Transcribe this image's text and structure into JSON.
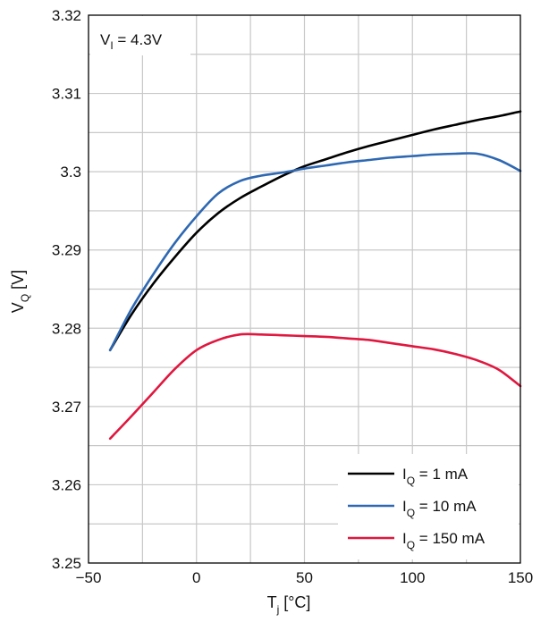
{
  "chart_data": {
    "type": "line",
    "title": "",
    "annotation": {
      "main": "V",
      "sub": "I",
      "rest": " = 4.3V"
    },
    "xlabel": {
      "main": "T",
      "sub": "j",
      "rest": " [°C]"
    },
    "ylabel": {
      "main": "V",
      "sub": "Q",
      "rest": " [V]"
    },
    "xlim": [
      -50,
      150
    ],
    "ylim": [
      3.25,
      3.32
    ],
    "xticks": [
      -50,
      0,
      50,
      100,
      150
    ],
    "xtick_labels": [
      "−50",
      "0",
      "50",
      "100",
      "150"
    ],
    "yticks": [
      3.25,
      3.26,
      3.27,
      3.28,
      3.29,
      3.3,
      3.31,
      3.32
    ],
    "ytick_labels": [
      "3.25",
      "3.26",
      "3.27",
      "3.28",
      "3.29",
      "3.3",
      "3.31",
      "3.32"
    ],
    "grid": true,
    "grid_x_step": 25,
    "grid_y_step": 0.005,
    "legend_position": "bottom-right",
    "series": [
      {
        "name": {
          "main": "I",
          "sub": "Q",
          "rest": " = 1 mA"
        },
        "color": "#000000",
        "x": [
          -40,
          -30,
          -20,
          -10,
          0,
          10,
          20,
          30,
          40,
          50,
          60,
          70,
          80,
          90,
          100,
          110,
          120,
          130,
          140,
          150
        ],
        "y": [
          3.2772,
          3.2818,
          3.2857,
          3.2891,
          3.2922,
          3.2947,
          3.2966,
          3.2981,
          3.2995,
          3.3007,
          3.3016,
          3.3025,
          3.3033,
          3.304,
          3.3047,
          3.3054,
          3.306,
          3.3066,
          3.3071,
          3.3077
        ]
      },
      {
        "name": {
          "main": "I",
          "sub": "Q",
          "rest": " = 10 mA"
        },
        "color": "#2e68b2",
        "x": [
          -40,
          -30,
          -20,
          -10,
          0,
          10,
          20,
          30,
          40,
          50,
          60,
          70,
          80,
          90,
          100,
          110,
          120,
          130,
          140,
          150
        ],
        "y": [
          3.2772,
          3.2825,
          3.2869,
          3.2909,
          3.2943,
          3.2972,
          3.2988,
          3.2995,
          3.2999,
          3.3004,
          3.3008,
          3.3012,
          3.3015,
          3.3018,
          3.302,
          3.3022,
          3.3023,
          3.3023,
          3.3015,
          3.3001
        ]
      },
      {
        "name": {
          "main": "I",
          "sub": "Q",
          "rest": " = 150 mA"
        },
        "color": "#e0173f",
        "x": [
          -40,
          -30,
          -20,
          -10,
          0,
          10,
          20,
          30,
          40,
          50,
          60,
          70,
          80,
          90,
          100,
          110,
          120,
          130,
          140,
          150
        ],
        "y": [
          3.2659,
          3.2688,
          3.2718,
          3.2748,
          3.2772,
          3.2785,
          3.2792,
          3.2792,
          3.2791,
          3.279,
          3.2789,
          3.2787,
          3.2785,
          3.2781,
          3.2777,
          3.2773,
          3.2767,
          3.2759,
          3.2747,
          3.2726
        ]
      }
    ]
  }
}
